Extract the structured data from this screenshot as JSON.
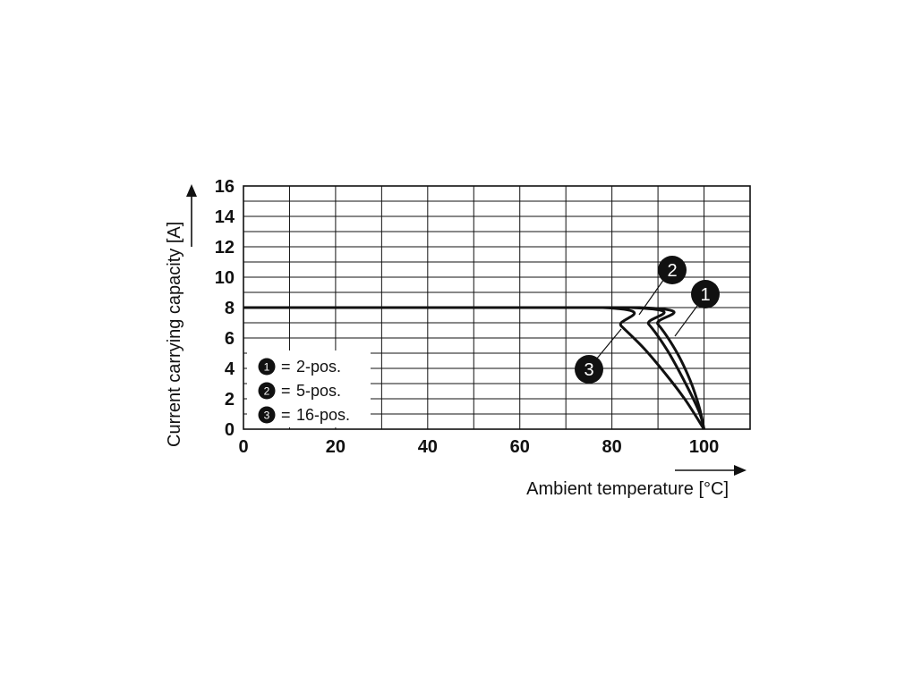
{
  "chart_data": {
    "type": "line",
    "xlabel": "Ambient temperature [°C]",
    "ylabel": "Current carrying capacity [A]",
    "xlim": [
      0,
      110
    ],
    "ylim": [
      0,
      16
    ],
    "x_ticks": [
      0,
      20,
      40,
      60,
      80,
      100
    ],
    "x_tick_labels": [
      "0",
      "20",
      "40",
      "60",
      "80",
      "100"
    ],
    "y_ticks": [
      0,
      2,
      4,
      6,
      8,
      10,
      12,
      14,
      16
    ],
    "y_tick_labels": [
      "0",
      "2",
      "4",
      "6",
      "8",
      "10",
      "12",
      "14",
      "16"
    ],
    "grid": true,
    "x_grid_step": 10,
    "y_grid_step": 1,
    "legend_position": "bottom-left",
    "series": [
      {
        "marker": "1",
        "name": "2-pos.",
        "x": [
          0,
          86,
          90,
          94,
          97,
          99,
          100
        ],
        "y": [
          8,
          8,
          6.9,
          5.1,
          3.2,
          1.4,
          0
        ]
      },
      {
        "marker": "2",
        "name": "5-pos.",
        "x": [
          0,
          84,
          88,
          92,
          96,
          99,
          100
        ],
        "y": [
          8,
          8,
          6.9,
          5.2,
          3.0,
          1.1,
          0
        ]
      },
      {
        "marker": "3",
        "name": "16-pos.",
        "x": [
          0,
          78,
          82,
          87,
          92,
          96,
          100
        ],
        "y": [
          8,
          8,
          6.8,
          5.3,
          3.5,
          1.9,
          0
        ]
      }
    ],
    "legend": [
      {
        "marker": "1",
        "separator": "=",
        "label": "2-pos."
      },
      {
        "marker": "2",
        "separator": "=",
        "label": "5-pos."
      },
      {
        "marker": "3",
        "separator": "=",
        "label": "16-pos."
      }
    ]
  }
}
